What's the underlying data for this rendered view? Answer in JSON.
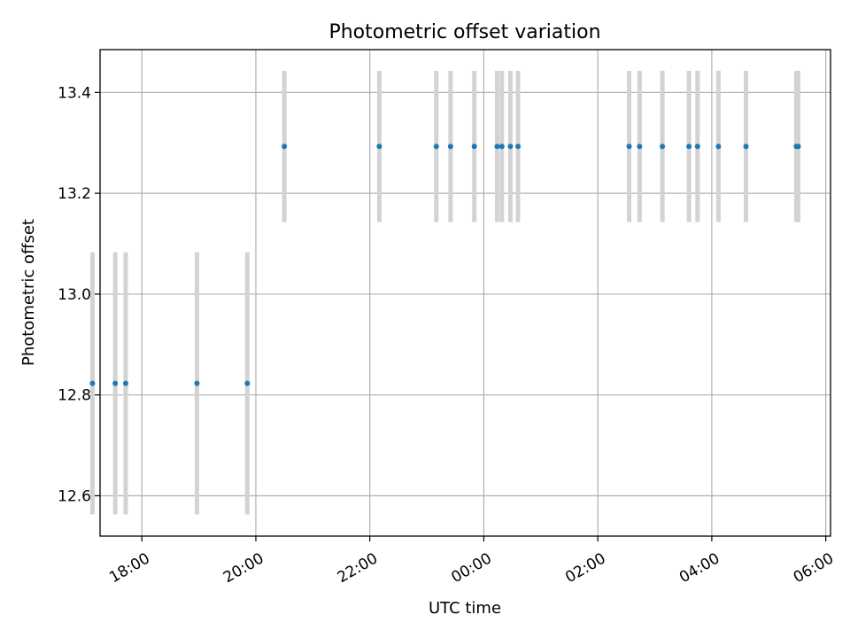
{
  "chart_data": {
    "type": "scatter",
    "title": "Photometric offset variation",
    "xlabel": "UTC time",
    "ylabel": "Photometric offset",
    "x_ticks": [
      "18:00",
      "20:00",
      "22:00",
      "00:00",
      "02:00",
      "04:00",
      "06:00"
    ],
    "y_ticks": [
      "12.6",
      "12.8",
      "13.0",
      "13.2",
      "13.4"
    ],
    "xlim": [
      "17:16",
      "06:05"
    ],
    "ylim": [
      12.52,
      13.485
    ],
    "grid": true,
    "error_bar_color": "#d3d3d3",
    "marker_color": "#1f77b4",
    "points": [
      {
        "time": "17:08",
        "y": 12.823,
        "err": 0.26
      },
      {
        "time": "17:32",
        "y": 12.823,
        "err": 0.26
      },
      {
        "time": "17:43",
        "y": 12.823,
        "err": 0.26
      },
      {
        "time": "18:58",
        "y": 12.823,
        "err": 0.26
      },
      {
        "time": "19:51",
        "y": 12.823,
        "err": 0.26
      },
      {
        "time": "20:30",
        "y": 13.293,
        "err": 0.15
      },
      {
        "time": "22:10",
        "y": 13.293,
        "err": 0.15
      },
      {
        "time": "23:10",
        "y": 13.293,
        "err": 0.15
      },
      {
        "time": "23:25",
        "y": 13.293,
        "err": 0.15
      },
      {
        "time": "23:50",
        "y": 13.293,
        "err": 0.15
      },
      {
        "time": "00:14",
        "y": 13.293,
        "err": 0.15
      },
      {
        "time": "00:19",
        "y": 13.293,
        "err": 0.15
      },
      {
        "time": "00:28",
        "y": 13.293,
        "err": 0.15
      },
      {
        "time": "00:36",
        "y": 13.293,
        "err": 0.15
      },
      {
        "time": "02:33",
        "y": 13.293,
        "err": 0.15
      },
      {
        "time": "02:44",
        "y": 13.293,
        "err": 0.15
      },
      {
        "time": "03:08",
        "y": 13.293,
        "err": 0.15
      },
      {
        "time": "03:36",
        "y": 13.293,
        "err": 0.15
      },
      {
        "time": "03:45",
        "y": 13.293,
        "err": 0.15
      },
      {
        "time": "04:07",
        "y": 13.293,
        "err": 0.15
      },
      {
        "time": "04:36",
        "y": 13.293,
        "err": 0.15
      },
      {
        "time": "05:29",
        "y": 13.293,
        "err": 0.15
      },
      {
        "time": "05:31",
        "y": 13.293,
        "err": 0.15
      }
    ]
  }
}
